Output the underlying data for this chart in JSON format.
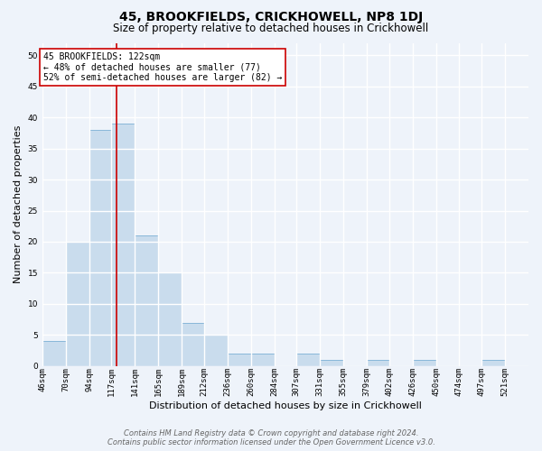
{
  "title": "45, BROOKFIELDS, CRICKHOWELL, NP8 1DJ",
  "subtitle": "Size of property relative to detached houses in Crickhowell",
  "xlabel": "Distribution of detached houses by size in Crickhowell",
  "ylabel": "Number of detached properties",
  "bin_labels": [
    "46sqm",
    "70sqm",
    "94sqm",
    "117sqm",
    "141sqm",
    "165sqm",
    "189sqm",
    "212sqm",
    "236sqm",
    "260sqm",
    "284sqm",
    "307sqm",
    "331sqm",
    "355sqm",
    "379sqm",
    "402sqm",
    "426sqm",
    "450sqm",
    "474sqm",
    "497sqm",
    "521sqm"
  ],
  "bar_heights": [
    4,
    20,
    38,
    39,
    21,
    15,
    7,
    5,
    2,
    2,
    0,
    2,
    1,
    0,
    1,
    0,
    1,
    0,
    0,
    1,
    0
  ],
  "bar_color": "#c9dced",
  "bar_edge_color": "#7bafd4",
  "bin_edges": [
    46,
    70,
    94,
    117,
    141,
    165,
    189,
    212,
    236,
    260,
    284,
    307,
    331,
    355,
    379,
    402,
    426,
    450,
    474,
    497,
    521,
    545
  ],
  "property_value": 122,
  "vline_color": "#cc0000",
  "annotation_text": "45 BROOKFIELDS: 122sqm\n← 48% of detached houses are smaller (77)\n52% of semi-detached houses are larger (82) →",
  "annotation_box_color": "#ffffff",
  "annotation_box_edge": "#cc0000",
  "ylim": [
    0,
    52
  ],
  "yticks": [
    0,
    5,
    10,
    15,
    20,
    25,
    30,
    35,
    40,
    45,
    50
  ],
  "footer1": "Contains HM Land Registry data © Crown copyright and database right 2024.",
  "footer2": "Contains public sector information licensed under the Open Government Licence v3.0.",
  "bg_color": "#eef3fa",
  "grid_color": "#ffffff",
  "title_fontsize": 10,
  "subtitle_fontsize": 8.5,
  "tick_fontsize": 6.5,
  "label_fontsize": 8,
  "annotation_fontsize": 7,
  "footer_fontsize": 6
}
